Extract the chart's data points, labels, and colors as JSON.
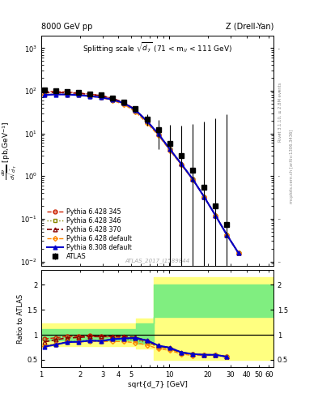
{
  "title_top_left": "8000 GeV pp",
  "title_top_right": "Z (Drell-Yan)",
  "plot_title": "Splitting scale $\\sqrt{d_7}$ (71 < m$_{ll}$ < 111 GeV)",
  "watermark": "ATLAS_2017_I1589844",
  "right_label_top": "Rivet 3.1.10, ≥ 2.8M events",
  "right_label_bottom": "mcplots.cern.ch [arXiv:1306.3436]",
  "x_data": [
    1.06,
    1.3,
    1.6,
    1.95,
    2.4,
    2.95,
    3.61,
    4.43,
    5.44,
    6.68,
    8.2,
    10.07,
    12.36,
    15.18,
    18.64,
    22.89,
    28.11,
    34.53,
    42.41,
    52.09,
    63.99
  ],
  "atlas_y": [
    105.0,
    102.0,
    96.0,
    92.0,
    85.0,
    80.0,
    68.0,
    55.0,
    38.0,
    22.0,
    12.5,
    5.8,
    3.0,
    1.4,
    0.55,
    0.2,
    0.075,
    null,
    null,
    null,
    null
  ],
  "atlas_yerr": [
    5.0,
    4.0,
    4.0,
    4.0,
    4.0,
    3.5,
    3.5,
    3.0,
    2.5,
    2.0,
    1.5,
    0.7,
    0.4,
    0.2,
    0.08,
    0.03,
    0.012,
    null,
    null,
    null,
    null
  ],
  "py345_y": [
    96.0,
    96.0,
    93.0,
    89.0,
    83.0,
    77.0,
    65.0,
    52.0,
    35.0,
    19.0,
    9.5,
    4.2,
    1.9,
    0.85,
    0.33,
    0.12,
    0.042,
    0.016,
    null,
    null,
    null
  ],
  "py346_y": [
    82.0,
    83.0,
    83.0,
    80.0,
    76.0,
    71.0,
    62.0,
    50.0,
    34.0,
    18.5,
    9.5,
    4.2,
    1.9,
    0.85,
    0.33,
    0.12,
    0.042,
    0.016,
    null,
    null,
    null
  ],
  "py370_y": [
    90.0,
    92.0,
    90.0,
    87.0,
    82.0,
    77.0,
    66.0,
    53.0,
    36.0,
    19.5,
    9.8,
    4.3,
    1.95,
    0.86,
    0.33,
    0.12,
    0.042,
    0.016,
    null,
    null,
    null
  ],
  "pydef_y": [
    81.0,
    83.0,
    82.0,
    79.0,
    74.0,
    69.0,
    59.0,
    47.5,
    32.0,
    17.5,
    9.0,
    4.0,
    1.85,
    0.82,
    0.33,
    0.12,
    0.042,
    0.016,
    null,
    null,
    null
  ],
  "py8def_y": [
    80.0,
    82.0,
    82.0,
    79.0,
    75.0,
    70.0,
    62.0,
    51.0,
    35.5,
    19.5,
    9.8,
    4.3,
    1.95,
    0.86,
    0.33,
    0.12,
    0.042,
    0.016,
    null,
    null,
    null
  ],
  "color_py345": "#cc2200",
  "color_py346": "#888800",
  "color_py370": "#880000",
  "color_pydef": "#ff8800",
  "color_py8def": "#0000cc",
  "xlim": [
    1.0,
    65.0
  ],
  "ylim_main": [
    0.008,
    2000.0
  ],
  "ylim_ratio": [
    0.35,
    2.3
  ],
  "band_yellow_color": "#ffff80",
  "band_green_color": "#80ee80"
}
